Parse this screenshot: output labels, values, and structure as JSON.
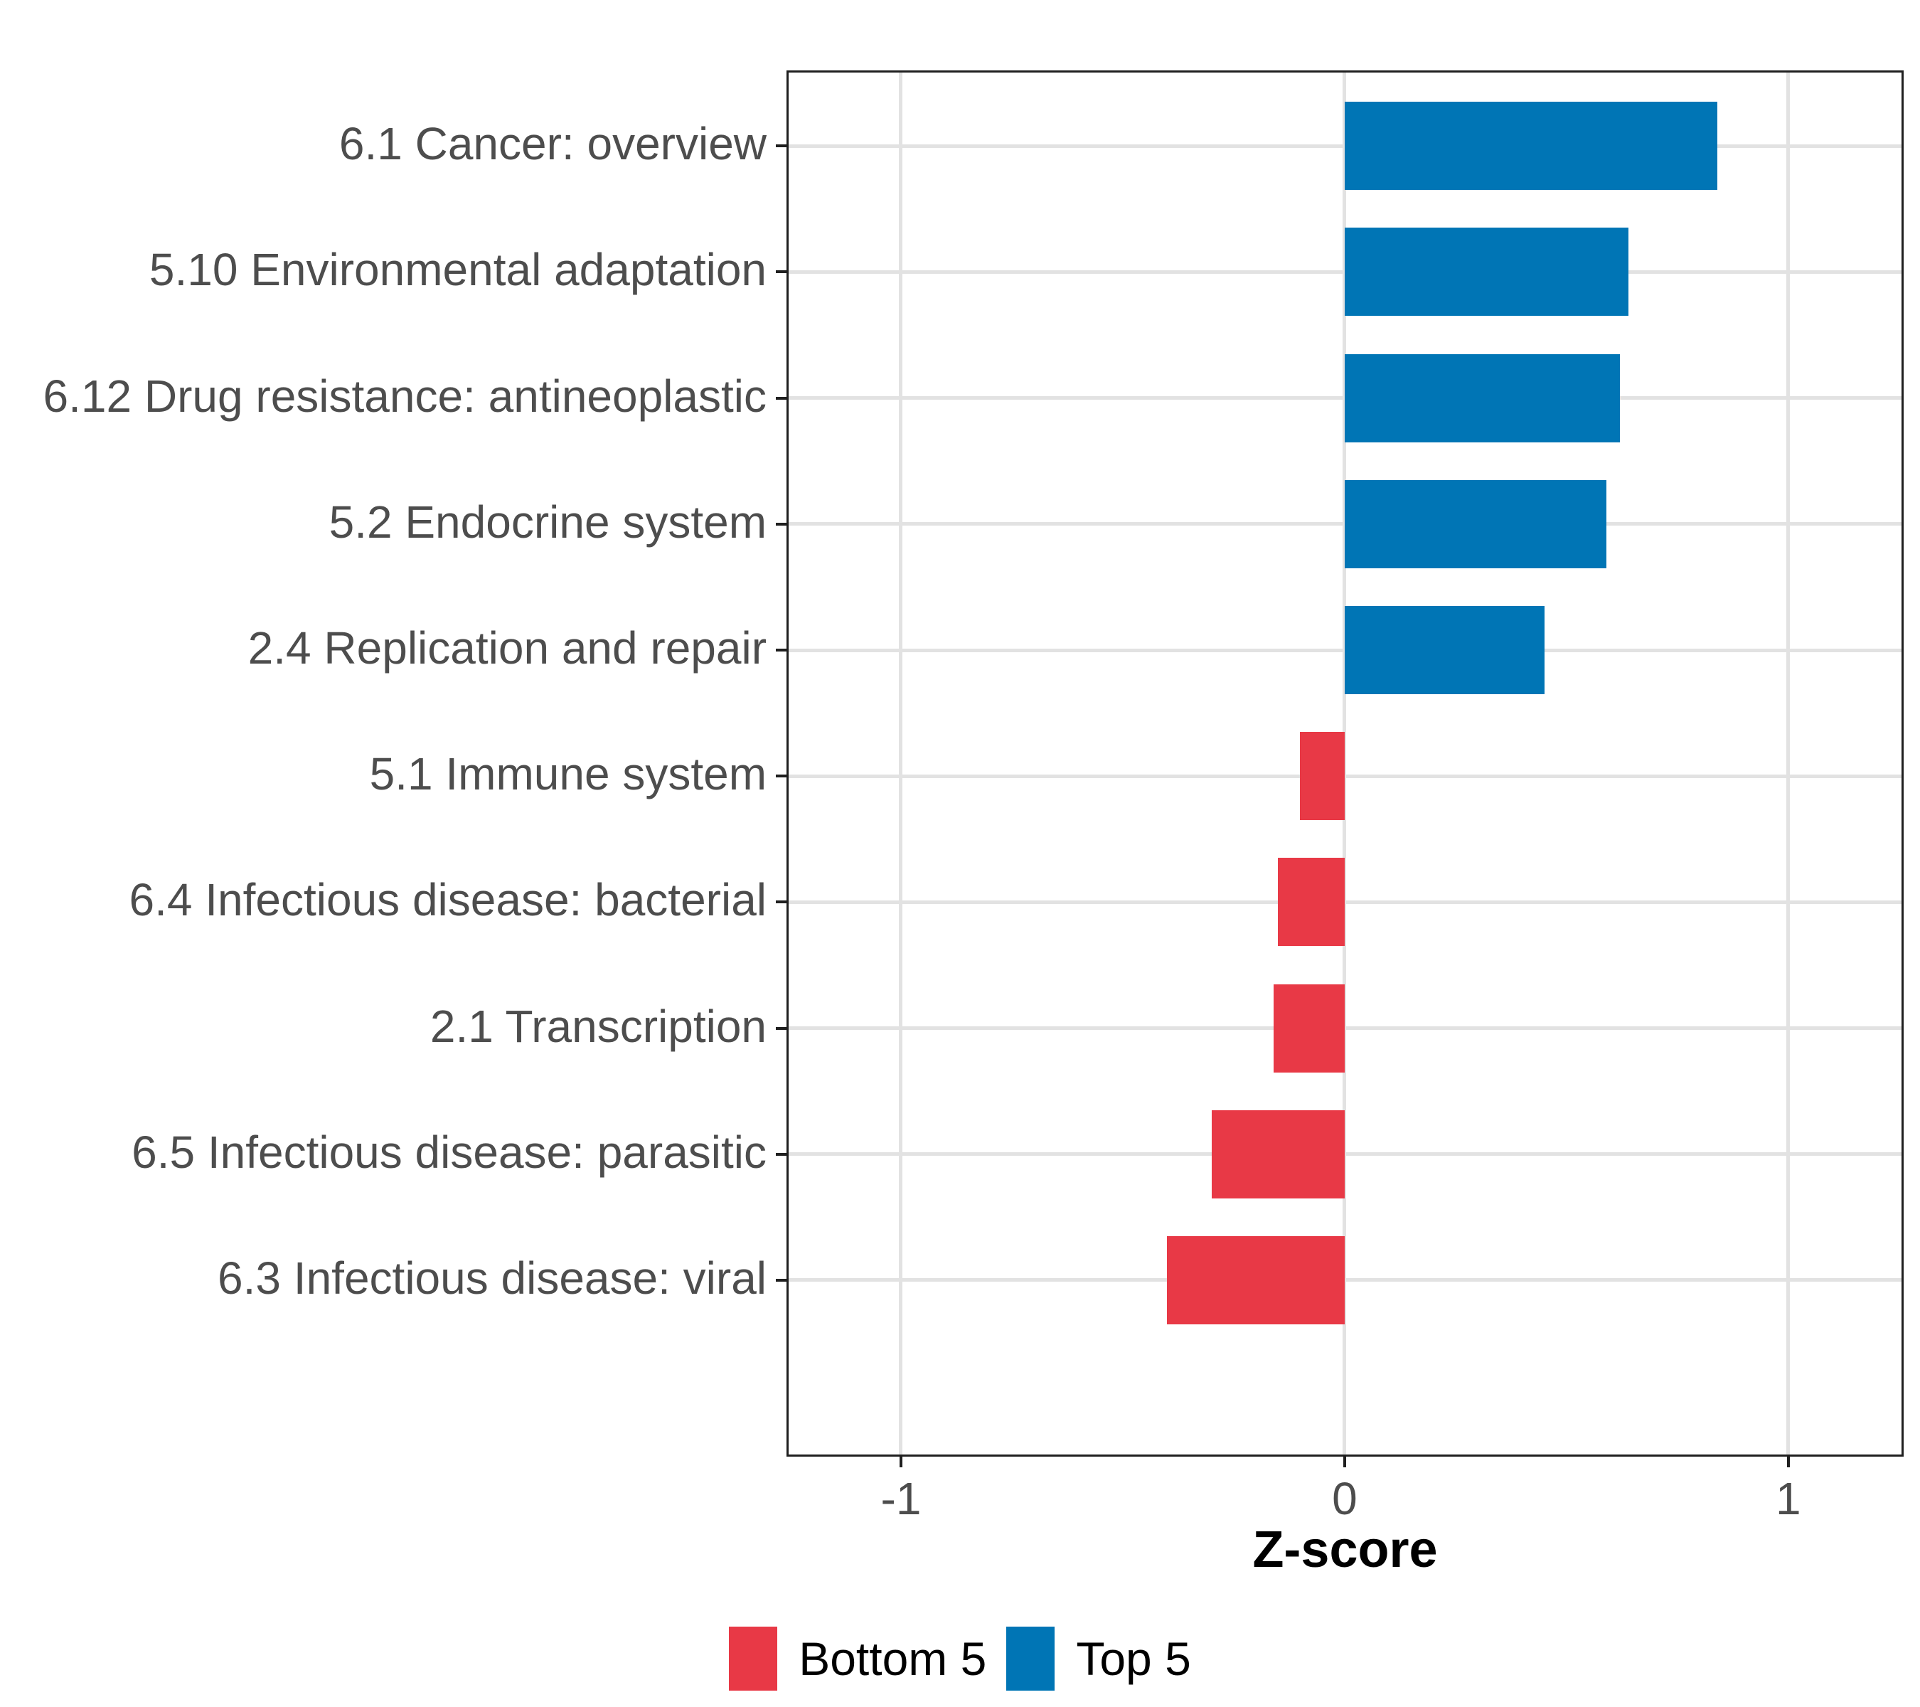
{
  "chart_data": {
    "type": "bar",
    "orientation": "horizontal",
    "title": "",
    "xlabel": "Z-score",
    "ylabel": "",
    "categories": [
      "6.1 Cancer: overview",
      "5.10 Environmental adaptation",
      "6.12 Drug resistance: antineoplastic",
      "5.2 Endocrine system",
      "2.4 Replication and repair",
      "5.1 Immune system",
      "6.4 Infectious disease: bacterial",
      "2.1 Transcription",
      "6.5 Infectious disease: parasitic",
      "6.3 Infectious disease: viral"
    ],
    "values": [
      0.84,
      0.64,
      0.62,
      0.59,
      0.45,
      -0.1,
      -0.15,
      -0.16,
      -0.3,
      -0.4
    ],
    "groups": [
      "Top 5",
      "Top 5",
      "Top 5",
      "Top 5",
      "Top 5",
      "Bottom 5",
      "Bottom 5",
      "Bottom 5",
      "Bottom 5",
      "Bottom 5"
    ],
    "x_ticks": [
      -1,
      0,
      1
    ],
    "x_tick_labels": [
      "-1",
      "0",
      "1"
    ],
    "xlim": [
      -1.258,
      1.26
    ],
    "grid": "major",
    "legend": {
      "position": "bottom",
      "entries": [
        {
          "label": "Bottom 5",
          "color": "#E83946"
        },
        {
          "label": "Top 5",
          "color": "#0075B5"
        }
      ]
    }
  },
  "colors": {
    "top5_bar": "#0075B5",
    "bottom5_bar": "#E83946",
    "gridline": "#E2E2E2",
    "axis_text": "#4D4D4D",
    "panel_border": "#1F1F1F",
    "background": "#FFFFFF"
  }
}
